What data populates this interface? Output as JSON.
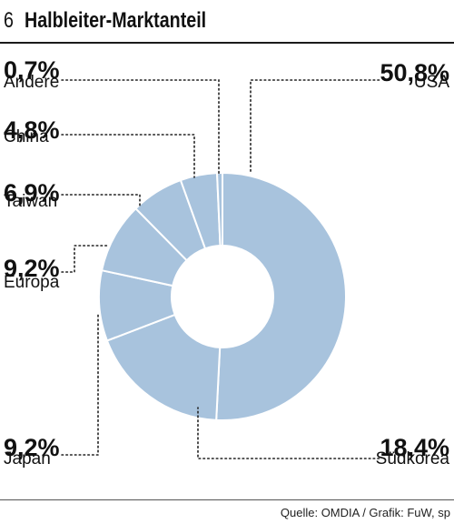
{
  "title_number": "6",
  "title": "Halbleiter-Marktanteil",
  "source": "Quelle: OMDIA / Grafik: FuW, sp",
  "colors": {
    "slice": "#a8c3dd",
    "separator": "#ffffff",
    "leader": "#222222"
  },
  "chart_data": {
    "type": "pie",
    "variant": "donut",
    "unit": "%",
    "slices": [
      {
        "label": "USA",
        "value": 50.8,
        "display": "50,8%"
      },
      {
        "label": "Südkorea",
        "value": 18.4,
        "display": "18,4%"
      },
      {
        "label": "Japan",
        "value": 9.2,
        "display": "9,2%"
      },
      {
        "label": "Europa",
        "value": 9.2,
        "display": "9,2%"
      },
      {
        "label": "Taiwan",
        "value": 6.9,
        "display": "6,9%"
      },
      {
        "label": "China",
        "value": 4.8,
        "display": "4,8%"
      },
      {
        "label": "Andere",
        "value": 0.7,
        "display": "0,7%"
      }
    ]
  }
}
